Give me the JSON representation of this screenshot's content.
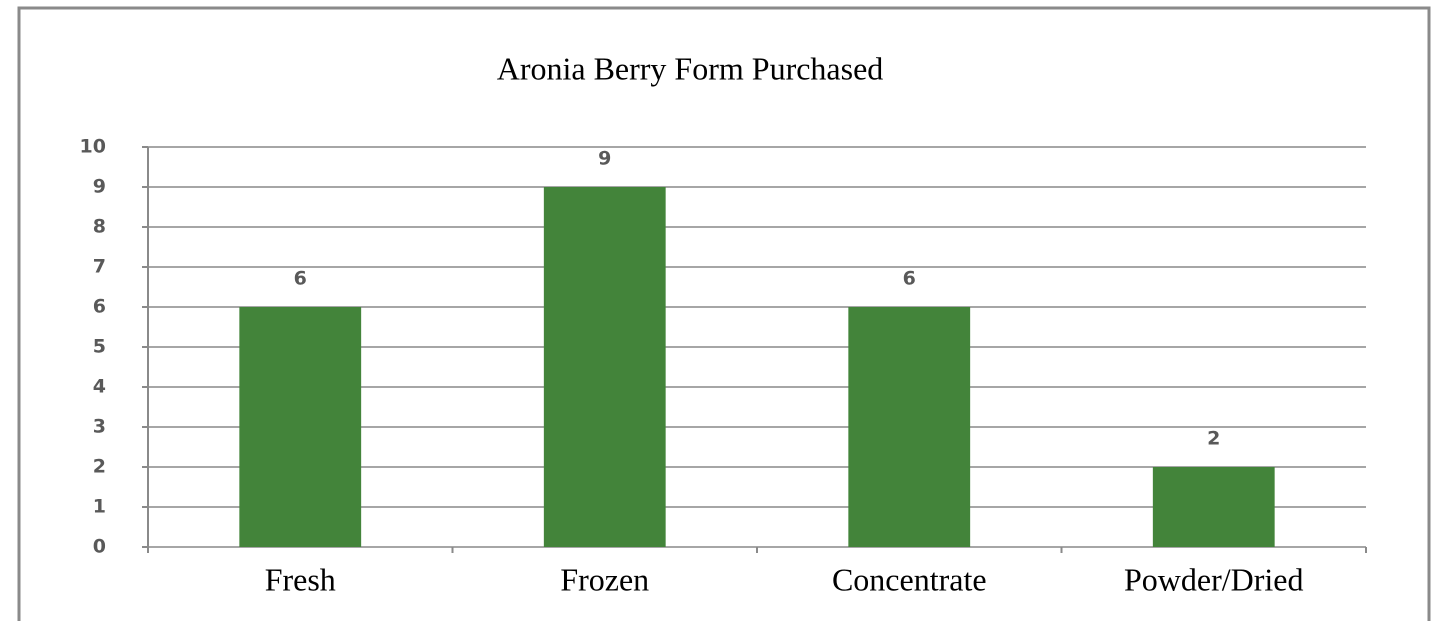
{
  "chart_data": {
    "type": "bar",
    "title": "Aronia Berry Form Purchased",
    "categories": [
      "Fresh",
      "Frozen",
      "Concentrate",
      "Powder/Dried"
    ],
    "values": [
      6,
      9,
      6,
      2
    ],
    "color": "#43843a",
    "ylim": [
      0,
      10
    ],
    "yticks": [
      0,
      1,
      2,
      3,
      4,
      5,
      6,
      7,
      8,
      9,
      10
    ],
    "grid": true,
    "show_values": true
  }
}
